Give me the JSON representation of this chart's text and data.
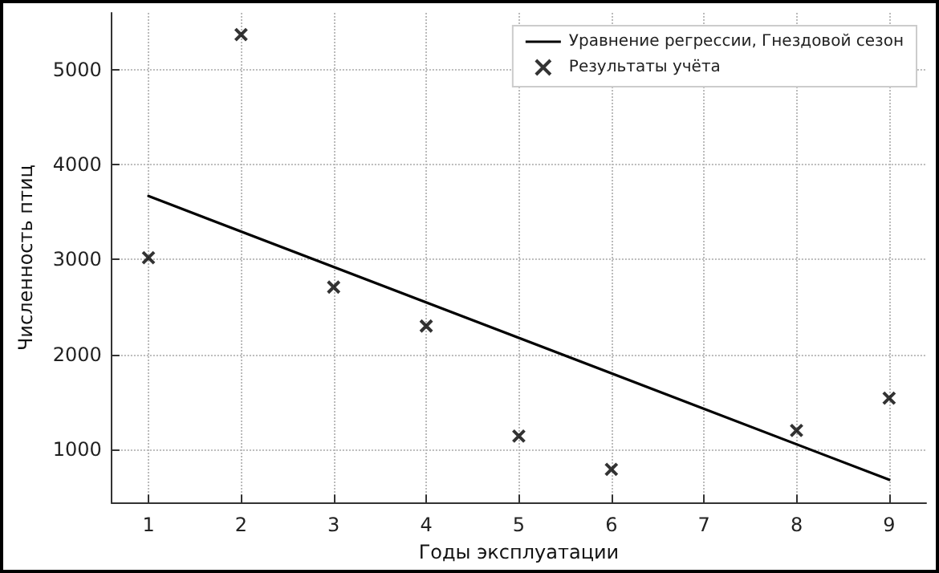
{
  "chart_data": {
    "type": "scatter",
    "xlabel": "Годы эксплуатации",
    "ylabel": "Численность птиц",
    "xlim": [
      0.6,
      9.4
    ],
    "xticks": [
      1,
      2,
      3,
      4,
      5,
      6,
      7,
      8,
      9
    ],
    "ylim": [
      440,
      5600
    ],
    "yticks": [
      1000,
      2000,
      3000,
      4000,
      5000
    ],
    "grid": true,
    "legend": "top right",
    "series": [
      {
        "name": "Уравнение регрессии, Гнездовой сезон",
        "type": "line",
        "color": "#000000",
        "x": [
          1,
          9
        ],
        "values": [
          3670,
          680
        ],
        "marker": "none",
        "line_style": "solid"
      },
      {
        "name": "Результаты учёта",
        "color": "#000000",
        "x": [
          1,
          2,
          3,
          4,
          5,
          6,
          8,
          9
        ],
        "values": [
          3020,
          5370,
          2710,
          2300,
          1140,
          790,
          1200,
          1540
        ],
        "marker": "cross"
      }
    ]
  }
}
